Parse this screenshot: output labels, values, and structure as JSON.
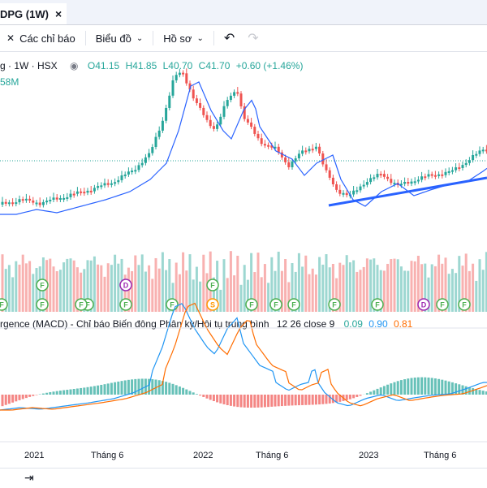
{
  "tab": {
    "title": "DPG (1W)",
    "close": "×"
  },
  "toolbar": {
    "indicators_icon": "indicators-icon",
    "indicators_label": "Các chỉ báo",
    "chart_type_label": "Biểu đồ",
    "profile_label": "Hồ sơ",
    "undo_icon": "undo-icon",
    "redo_icon": "redo-icon"
  },
  "symbol_info": {
    "name": "g · 1W · HSX",
    "open": "O41.15",
    "high": "H41.85",
    "low": "L40.70",
    "close": "C41.70",
    "change": "+0.60 (+1.46%)",
    "volume": "58M"
  },
  "macd": {
    "label": "rgence (MACD) - Chỉ báo Biến động Phân kỳ/Hội tụ trung bình",
    "params": "12 26 close 9",
    "hist": "0.09",
    "macd": "0.90",
    "signal": "0.81"
  },
  "time_axis": [
    "2021",
    "Tháng 6",
    "2022",
    "Tháng 6",
    "2023",
    "Tháng 6"
  ],
  "event_markers": [
    "F",
    "F",
    "F",
    "F",
    "S",
    "F",
    "F",
    "F",
    "F",
    "F",
    "D",
    "F",
    "F",
    "F",
    "F",
    "F",
    "D",
    "F"
  ],
  "colors": {
    "up": "#26a69a",
    "down": "#ef5350",
    "ma": "#2962ff",
    "trendline": "#2962ff",
    "macd_line": "#2196f3",
    "signal_line": "#ff6d00",
    "earnings": "#4caf50",
    "dividend": "#9c27b0",
    "split": "#ff9800"
  },
  "bottombar": {
    "date_range_icon": "date-range-icon"
  }
}
